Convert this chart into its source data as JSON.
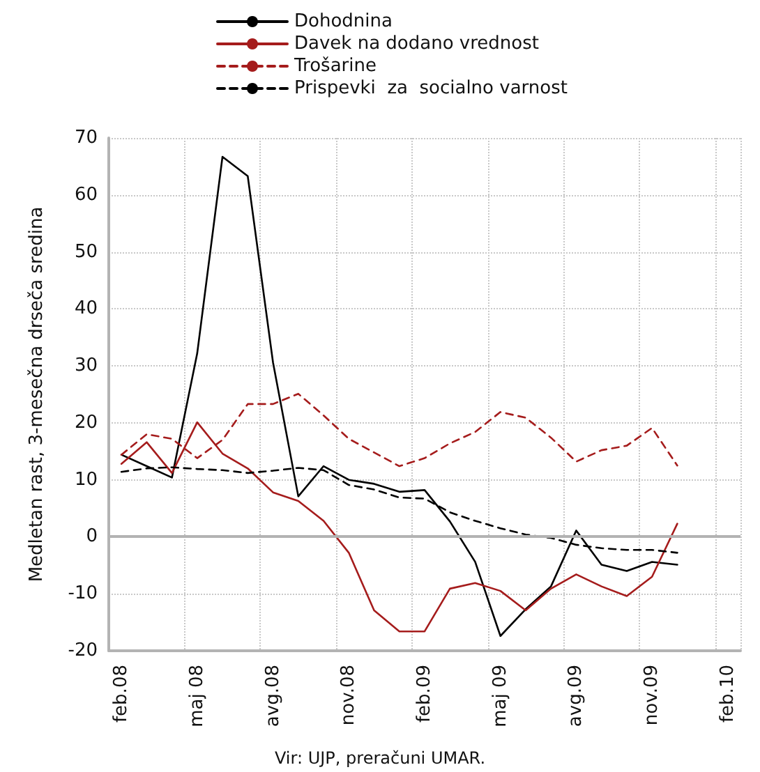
{
  "chart_data": {
    "type": "line",
    "ylabel": "Medletan rast, 3-mesečna drseča sredina",
    "annotations": [
      "Vir: UJP, preračuni UMAR."
    ],
    "categories": [
      "feb.08",
      null,
      null,
      "maj 08",
      null,
      null,
      "avg.08",
      null,
      null,
      "nov.08",
      null,
      null,
      "feb.09",
      null,
      null,
      "maj 09",
      null,
      null,
      "avg.09",
      null,
      null,
      "nov.09",
      null,
      null,
      "feb.10"
    ],
    "series": [
      {
        "name": "Dohodnina",
        "color": "#000000",
        "line_style": "solid",
        "values": [
          14.4,
          12.4,
          10.4,
          32.2,
          66.7,
          63.3,
          30.6,
          7.1,
          12.4,
          10,
          9.3,
          7.9,
          8.2,
          2.7,
          -4.4,
          -17.4,
          -12.7,
          -8.7,
          1.1,
          -4.9,
          -6,
          -4.4,
          -4.9,
          null,
          null
        ]
      },
      {
        "name": "Davek na dodano vrednost",
        "color": "#a51c1c",
        "line_style": "solid",
        "values": [
          12.8,
          16.6,
          11.2,
          20.1,
          14.6,
          12,
          7.8,
          6.3,
          2.8,
          -2.8,
          -12.9,
          -16.6,
          -16.6,
          -9.1,
          -8.1,
          -9.5,
          -12.9,
          -9.1,
          -6.6,
          -8.7,
          -10.4,
          -7,
          2.3,
          null,
          null
        ]
      },
      {
        "name": "Trošarine",
        "color": "#a51c1c",
        "line_style": "dashed",
        "values": [
          14.4,
          18,
          17.2,
          13.8,
          17,
          23.3,
          23.3,
          25.1,
          21.3,
          17.2,
          14.8,
          12.4,
          13.8,
          16.4,
          18.4,
          21.9,
          20.9,
          17.4,
          13.2,
          15.2,
          16,
          19.1,
          12.5,
          null,
          null
        ]
      },
      {
        "name": "Prispevki  za  socialno varnost",
        "color": "#000000",
        "line_style": "dashed",
        "values": [
          11.4,
          12,
          12.2,
          11.9,
          11.7,
          11.2,
          11.6,
          12.1,
          11.7,
          9.1,
          8.3,
          6.9,
          6.7,
          4.3,
          2.8,
          1.5,
          0.4,
          -0.2,
          -1.4,
          -2,
          -2.3,
          -2.3,
          -2.8,
          null,
          null
        ]
      }
    ],
    "ylim": [
      -20,
      70
    ],
    "yticks": [
      -20,
      -10,
      0,
      10,
      20,
      30,
      40,
      50,
      60,
      70
    ],
    "grid": true,
    "legend": "top",
    "marker": "none",
    "ref_lines": [
      {
        "axis": "y",
        "value": 0,
        "color": "#b3b3b3"
      }
    ]
  }
}
